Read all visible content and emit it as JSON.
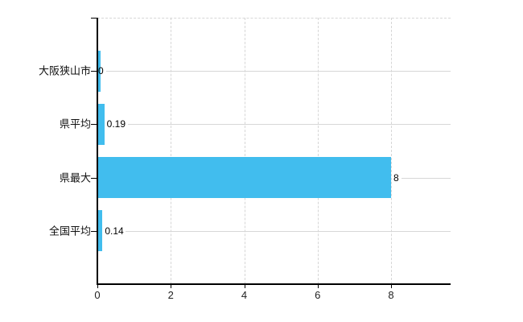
{
  "chart_data": {
    "type": "bar",
    "orientation": "horizontal",
    "title": "",
    "xlabel": "",
    "ylabel": "",
    "categories": [
      "大阪狭山市",
      "県平均",
      "県最大",
      "全国平均"
    ],
    "values": [
      0,
      0.19,
      8,
      0.14
    ],
    "value_labels": [
      "0",
      "0.19",
      "8",
      "0.14"
    ],
    "x_ticks": [
      0,
      2,
      4,
      6,
      8
    ],
    "x_tick_labels": [
      "0",
      "2",
      "4",
      "6",
      "8"
    ],
    "xlim": [
      0,
      9.62
    ],
    "grid": true,
    "legend": false,
    "bar_color": "#41bdee",
    "gridline_color": "#d6d6d6",
    "row_line_color": "#d7d7d7",
    "axis_color": "#000000",
    "text_color": "#000000",
    "background_color": "#ffffff"
  }
}
